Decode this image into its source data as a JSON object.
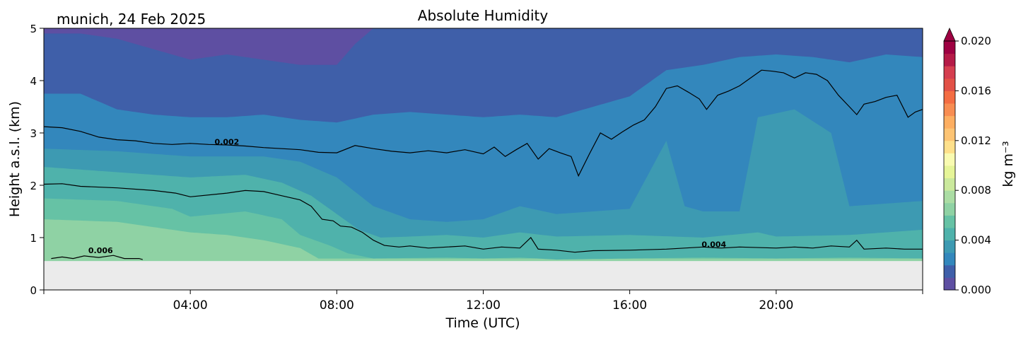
{
  "header": {
    "location_date": "munich, 24 Feb 2025",
    "title": "Absolute Humidity"
  },
  "chart_data": {
    "type": "heatmap",
    "title": "Absolute Humidity",
    "xlabel": "Time (UTC)",
    "ylabel": "Height a.s.l. (km)",
    "xlim": [
      0,
      24
    ],
    "ylim": [
      0,
      5
    ],
    "x_ticks": [
      {
        "value": 4,
        "label": "04:00"
      },
      {
        "value": 8,
        "label": "08:00"
      },
      {
        "value": 12,
        "label": "12:00"
      },
      {
        "value": 16,
        "label": "16:00"
      },
      {
        "value": 20,
        "label": "20:00"
      }
    ],
    "y_ticks": [
      {
        "value": 0,
        "label": "0"
      },
      {
        "value": 1,
        "label": "1"
      },
      {
        "value": 2,
        "label": "2"
      },
      {
        "value": 3,
        "label": "3"
      },
      {
        "value": 4,
        "label": "4"
      },
      {
        "value": 5,
        "label": "5"
      }
    ],
    "data_floor_km": 0.55,
    "below_floor_color": "#ebebeb",
    "colorbar": {
      "label": "kg m⁻³",
      "min": 0.0,
      "max": 0.02,
      "extend": "max",
      "ticks": [
        {
          "value": 0.0,
          "label": "0.000"
        },
        {
          "value": 0.004,
          "label": "0.004"
        },
        {
          "value": 0.008,
          "label": "0.008"
        },
        {
          "value": 0.012,
          "label": "0.012"
        },
        {
          "value": 0.016,
          "label": "0.016"
        },
        {
          "value": 0.02,
          "label": "0.020"
        }
      ],
      "colors": [
        "#5e4fa2",
        "#3f5fa9",
        "#3387bc",
        "#3d9ab2",
        "#4fb2ab",
        "#66c2a5",
        "#8fd2a4",
        "#abdda4",
        "#cbe99d",
        "#e6f598",
        "#f9fbb1",
        "#fee08b",
        "#fdc474",
        "#fdae61",
        "#f88d52",
        "#f46d43",
        "#e25147",
        "#d53e4f",
        "#b51a47",
        "#9e0142"
      ]
    },
    "contours": [
      {
        "level": 0.002,
        "label": "0.002",
        "label_at": [
          5.0,
          2.83
        ],
        "points": [
          [
            0,
            3.12
          ],
          [
            0.5,
            3.1
          ],
          [
            1,
            3.03
          ],
          [
            1.5,
            2.92
          ],
          [
            2,
            2.87
          ],
          [
            2.5,
            2.85
          ],
          [
            3,
            2.8
          ],
          [
            3.5,
            2.78
          ],
          [
            4,
            2.8
          ],
          [
            4.5,
            2.78
          ],
          [
            5,
            2.77
          ],
          [
            5.5,
            2.75
          ],
          [
            6,
            2.72
          ],
          [
            6.5,
            2.7
          ],
          [
            7,
            2.68
          ],
          [
            7.5,
            2.63
          ],
          [
            8,
            2.62
          ],
          [
            8.5,
            2.76
          ],
          [
            9,
            2.7
          ],
          [
            9.5,
            2.65
          ],
          [
            10,
            2.62
          ],
          [
            10.5,
            2.66
          ],
          [
            11,
            2.62
          ],
          [
            11.5,
            2.68
          ],
          [
            12,
            2.6
          ],
          [
            12.3,
            2.73
          ],
          [
            12.6,
            2.55
          ],
          [
            12.9,
            2.68
          ],
          [
            13.2,
            2.8
          ],
          [
            13.5,
            2.5
          ],
          [
            13.8,
            2.7
          ],
          [
            14.1,
            2.62
          ],
          [
            14.4,
            2.55
          ],
          [
            14.6,
            2.18
          ],
          [
            14.9,
            2.6
          ],
          [
            15.2,
            3.0
          ],
          [
            15.5,
            2.88
          ],
          [
            15.8,
            3.02
          ],
          [
            16.1,
            3.15
          ],
          [
            16.4,
            3.25
          ],
          [
            16.7,
            3.5
          ],
          [
            17,
            3.85
          ],
          [
            17.3,
            3.9
          ],
          [
            17.6,
            3.78
          ],
          [
            17.9,
            3.65
          ],
          [
            18.1,
            3.45
          ],
          [
            18.4,
            3.72
          ],
          [
            18.7,
            3.8
          ],
          [
            19,
            3.9
          ],
          [
            19.3,
            4.05
          ],
          [
            19.6,
            4.2
          ],
          [
            19.9,
            4.18
          ],
          [
            20.2,
            4.15
          ],
          [
            20.5,
            4.05
          ],
          [
            20.8,
            4.15
          ],
          [
            21.1,
            4.12
          ],
          [
            21.4,
            4.0
          ],
          [
            21.7,
            3.72
          ],
          [
            22,
            3.5
          ],
          [
            22.2,
            3.35
          ],
          [
            22.4,
            3.55
          ],
          [
            22.7,
            3.6
          ],
          [
            23,
            3.68
          ],
          [
            23.3,
            3.72
          ],
          [
            23.6,
            3.3
          ],
          [
            23.8,
            3.4
          ],
          [
            24,
            3.45
          ]
        ]
      },
      {
        "level": 0.006,
        "label": "0.006",
        "label_at": [
          1.55,
          0.76
        ],
        "points": [
          [
            0,
            2.02
          ],
          [
            0.5,
            2.03
          ],
          [
            1,
            1.98
          ],
          [
            2,
            1.95
          ],
          [
            3,
            1.9
          ],
          [
            3.6,
            1.85
          ],
          [
            4,
            1.78
          ],
          [
            5,
            1.85
          ],
          [
            5.5,
            1.9
          ],
          [
            6,
            1.88
          ],
          [
            6.5,
            1.8
          ],
          [
            7,
            1.72
          ],
          [
            7.3,
            1.6
          ],
          [
            7.6,
            1.35
          ],
          [
            7.9,
            1.32
          ],
          [
            8.1,
            1.22
          ],
          [
            8.4,
            1.2
          ],
          [
            8.7,
            1.1
          ],
          [
            9,
            0.95
          ],
          [
            9.3,
            0.85
          ],
          [
            9.7,
            0.82
          ],
          [
            10,
            0.84
          ],
          [
            10.5,
            0.8
          ],
          [
            11,
            0.82
          ],
          [
            11.5,
            0.84
          ],
          [
            12,
            0.78
          ],
          [
            12.5,
            0.82
          ],
          [
            13,
            0.8
          ],
          [
            13.3,
            1.0
          ],
          [
            13.5,
            0.78
          ],
          [
            14,
            0.76
          ],
          [
            14.5,
            0.72
          ],
          [
            15,
            0.75
          ],
          [
            16,
            0.76
          ],
          [
            17,
            0.78
          ],
          [
            17.5,
            0.8
          ],
          [
            18,
            0.82
          ],
          [
            18.5,
            0.8
          ],
          [
            19,
            0.82
          ],
          [
            20,
            0.8
          ],
          [
            20.5,
            0.82
          ],
          [
            21,
            0.8
          ],
          [
            21.5,
            0.84
          ],
          [
            22,
            0.82
          ],
          [
            22.2,
            0.95
          ],
          [
            22.4,
            0.78
          ],
          [
            23,
            0.8
          ],
          [
            23.5,
            0.78
          ],
          [
            24,
            0.78
          ]
        ]
      },
      {
        "level": 0.006,
        "label": "",
        "label_at": null,
        "points": [
          [
            0.2,
            0.6
          ],
          [
            0.5,
            0.63
          ],
          [
            0.8,
            0.6
          ],
          [
            1.1,
            0.65
          ],
          [
            1.5,
            0.62
          ],
          [
            1.9,
            0.66
          ],
          [
            2.2,
            0.6
          ],
          [
            2.6,
            0.6
          ],
          [
            2.7,
            0.58
          ]
        ]
      },
      {
        "level": 0.004,
        "label": "0.004",
        "label_at": [
          18.3,
          0.87
        ],
        "points": []
      }
    ],
    "bands": [
      {
        "level_index": 5,
        "top": [
          [
            0,
            1.35
          ],
          [
            2,
            1.3
          ],
          [
            4,
            1.1
          ],
          [
            5,
            1.05
          ],
          [
            6,
            0.95
          ],
          [
            7,
            0.8
          ],
          [
            7.5,
            0.6
          ]
        ]
      },
      {
        "level_index": 4,
        "top": [
          [
            0,
            1.75
          ],
          [
            2,
            1.7
          ],
          [
            3.5,
            1.55
          ],
          [
            4,
            1.4
          ],
          [
            5.5,
            1.5
          ],
          [
            6.5,
            1.35
          ],
          [
            7,
            1.05
          ],
          [
            7.8,
            0.85
          ],
          [
            8.3,
            0.7
          ],
          [
            9,
            0.6
          ],
          [
            11,
            0.62
          ],
          [
            12,
            0.6
          ],
          [
            13,
            0.62
          ],
          [
            14,
            0.58
          ],
          [
            16,
            0.6
          ],
          [
            18,
            0.62
          ],
          [
            20,
            0.6
          ],
          [
            22,
            0.62
          ],
          [
            24,
            0.6
          ]
        ]
      },
      {
        "level_index": 3,
        "top": [
          [
            0,
            2.35
          ],
          [
            2,
            2.25
          ],
          [
            4,
            2.15
          ],
          [
            5.5,
            2.2
          ],
          [
            6.5,
            2.05
          ],
          [
            7.3,
            1.8
          ],
          [
            8,
            1.45
          ],
          [
            8.6,
            1.15
          ],
          [
            9.2,
            1.0
          ],
          [
            10,
            1.02
          ],
          [
            11,
            1.05
          ],
          [
            12,
            1.0
          ],
          [
            13,
            1.1
          ],
          [
            14,
            1.02
          ],
          [
            16,
            1.05
          ],
          [
            18,
            1.0
          ],
          [
            19.5,
            1.1
          ],
          [
            20,
            1.02
          ],
          [
            22,
            1.05
          ],
          [
            24,
            1.15
          ]
        ]
      },
      {
        "level_index": 2,
        "top": [
          [
            0,
            2.7
          ],
          [
            2,
            2.65
          ],
          [
            4,
            2.55
          ],
          [
            6,
            2.55
          ],
          [
            7,
            2.45
          ],
          [
            8,
            2.15
          ],
          [
            9,
            1.6
          ],
          [
            10,
            1.35
          ],
          [
            11,
            1.3
          ],
          [
            12,
            1.35
          ],
          [
            13,
            1.6
          ],
          [
            14,
            1.45
          ],
          [
            15,
            1.5
          ],
          [
            16,
            1.55
          ],
          [
            17,
            2.85
          ],
          [
            17.5,
            1.6
          ],
          [
            18,
            1.5
          ],
          [
            19,
            1.5
          ],
          [
            19.5,
            3.3
          ],
          [
            20.5,
            3.45
          ],
          [
            21.5,
            3.0
          ],
          [
            22,
            1.6
          ],
          [
            24,
            1.7
          ]
        ]
      },
      {
        "level_index": 1,
        "top": [
          [
            0,
            4.95
          ],
          [
            24,
            4.95
          ]
        ]
      },
      {
        "level_index": 0,
        "top": [
          [
            0,
            5.0
          ],
          [
            24,
            5.0
          ]
        ]
      }
    ],
    "upper_band": {
      "level_index": 0,
      "bottom": [
        [
          0,
          4.9
        ],
        [
          1,
          4.9
        ],
        [
          2,
          4.8
        ],
        [
          3,
          4.6
        ],
        [
          4,
          4.4
        ],
        [
          5,
          4.5
        ],
        [
          6,
          4.4
        ],
        [
          7,
          4.3
        ],
        [
          8,
          4.3
        ],
        [
          8.5,
          4.7
        ],
        [
          9,
          5.0
        ],
        [
          24,
          5.0
        ]
      ]
    },
    "mid_band": {
      "level_index": 1,
      "bottom": [
        [
          0,
          3.75
        ],
        [
          1,
          3.75
        ],
        [
          2,
          3.45
        ],
        [
          3,
          3.35
        ],
        [
          4,
          3.3
        ],
        [
          5,
          3.3
        ],
        [
          6,
          3.35
        ],
        [
          7,
          3.25
        ],
        [
          8,
          3.2
        ],
        [
          9,
          3.35
        ],
        [
          10,
          3.4
        ],
        [
          11,
          3.35
        ],
        [
          12,
          3.3
        ],
        [
          13,
          3.35
        ],
        [
          14,
          3.3
        ],
        [
          15,
          3.5
        ],
        [
          16,
          3.7
        ],
        [
          17,
          4.2
        ],
        [
          18,
          4.3
        ],
        [
          19,
          4.45
        ],
        [
          20,
          4.5
        ],
        [
          21,
          4.45
        ],
        [
          22,
          4.35
        ],
        [
          23,
          4.5
        ],
        [
          24,
          4.45
        ]
      ]
    }
  }
}
